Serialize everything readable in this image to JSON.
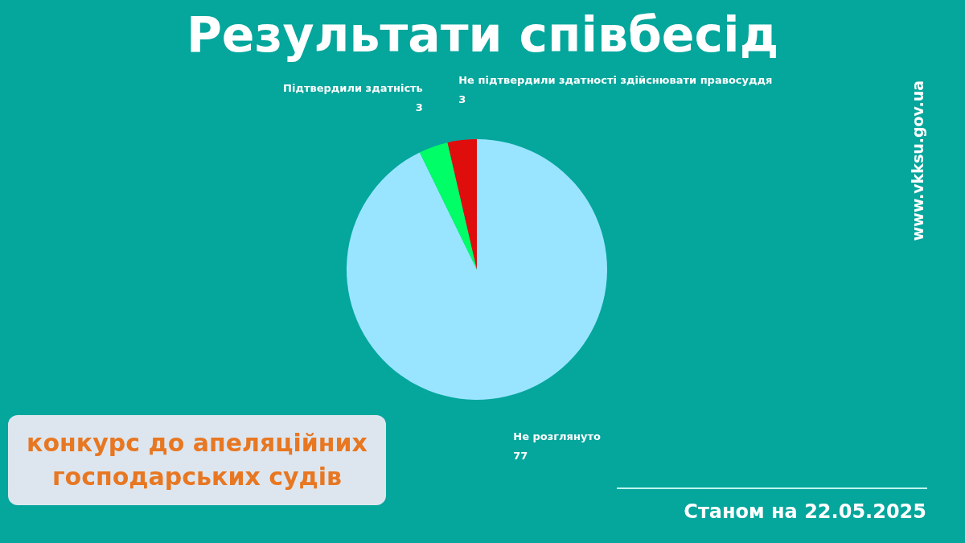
{
  "chart_data": {
    "type": "pie",
    "title": "Результати співбесід",
    "categories": [
      "Не розглянуто",
      "Підтвердили здатність",
      "Не підтвердили здатності здійснювати правосуддя"
    ],
    "values": [
      77,
      3,
      3
    ],
    "colors": [
      "#99e5ff",
      "#00ff66",
      "#e00d0d"
    ],
    "data_labels": true,
    "legend": false,
    "annotations": [
      "конкурс до апеляційних господарських судів",
      "Станом на 22.05.2025",
      "www.vkksu.gov.ua"
    ]
  }
}
